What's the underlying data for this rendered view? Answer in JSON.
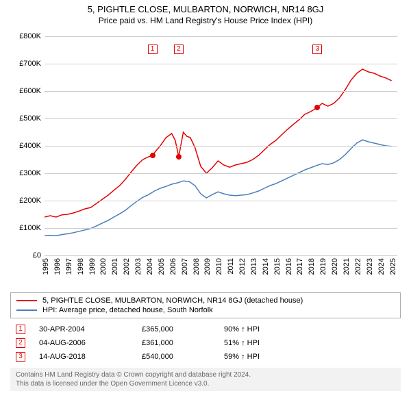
{
  "title_line1": "5, PIGHTLE CLOSE, MULBARTON, NORWICH, NR14 8GJ",
  "title_line2": "Price paid vs. HM Land Registry's House Price Index (HPI)",
  "chart": {
    "type": "line",
    "background_color": "#ffffff",
    "grid_color": "#cccccc",
    "band_color": "#e7edf5",
    "title_fontsize": 13,
    "subtitle_fontsize": 12,
    "tick_fontsize": 11,
    "x_min": 1995,
    "x_max": 2025.5,
    "x_ticks": [
      1995,
      1996,
      1997,
      1998,
      1999,
      2000,
      2001,
      2002,
      2003,
      2004,
      2005,
      2006,
      2007,
      2008,
      2009,
      2010,
      2011,
      2012,
      2013,
      2014,
      2015,
      2016,
      2017,
      2018,
      2019,
      2020,
      2021,
      2022,
      2023,
      2024,
      2025
    ],
    "y_min": 0,
    "y_max": 800000,
    "y_ticks": [
      0,
      100000,
      200000,
      300000,
      400000,
      500000,
      600000,
      700000,
      800000
    ],
    "y_tick_labels": [
      "£0",
      "£100K",
      "£200K",
      "£300K",
      "£400K",
      "£500K",
      "£600K",
      "£700K",
      "£800K"
    ],
    "band_year_width": 1,
    "series": [
      {
        "name": "property",
        "color": "#e60000",
        "line_width": 1.5,
        "data": [
          [
            1995,
            140000
          ],
          [
            1995.5,
            145000
          ],
          [
            1996,
            140000
          ],
          [
            1996.5,
            148000
          ],
          [
            1997,
            150000
          ],
          [
            1997.5,
            155000
          ],
          [
            1998,
            162000
          ],
          [
            1998.5,
            170000
          ],
          [
            1999,
            175000
          ],
          [
            1999.5,
            190000
          ],
          [
            2000,
            205000
          ],
          [
            2000.5,
            220000
          ],
          [
            2001,
            238000
          ],
          [
            2001.5,
            255000
          ],
          [
            2002,
            278000
          ],
          [
            2002.5,
            305000
          ],
          [
            2003,
            330000
          ],
          [
            2003.5,
            350000
          ],
          [
            2004,
            360000
          ],
          [
            2004.33,
            365000
          ],
          [
            2004.6,
            380000
          ],
          [
            2005,
            400000
          ],
          [
            2005.5,
            430000
          ],
          [
            2006,
            445000
          ],
          [
            2006.3,
            420000
          ],
          [
            2006.6,
            361000
          ],
          [
            2007,
            450000
          ],
          [
            2007.3,
            435000
          ],
          [
            2007.6,
            430000
          ],
          [
            2008,
            395000
          ],
          [
            2008.5,
            325000
          ],
          [
            2009,
            300000
          ],
          [
            2009.5,
            320000
          ],
          [
            2010,
            345000
          ],
          [
            2010.5,
            330000
          ],
          [
            2011,
            322000
          ],
          [
            2011.5,
            330000
          ],
          [
            2012,
            335000
          ],
          [
            2012.5,
            340000
          ],
          [
            2013,
            350000
          ],
          [
            2013.5,
            365000
          ],
          [
            2014,
            385000
          ],
          [
            2014.5,
            405000
          ],
          [
            2015,
            420000
          ],
          [
            2015.5,
            440000
          ],
          [
            2016,
            460000
          ],
          [
            2016.5,
            478000
          ],
          [
            2017,
            495000
          ],
          [
            2017.5,
            515000
          ],
          [
            2018,
            525000
          ],
          [
            2018.6,
            540000
          ],
          [
            2019,
            555000
          ],
          [
            2019.5,
            545000
          ],
          [
            2020,
            555000
          ],
          [
            2020.5,
            575000
          ],
          [
            2021,
            605000
          ],
          [
            2021.5,
            640000
          ],
          [
            2022,
            665000
          ],
          [
            2022.5,
            680000
          ],
          [
            2023,
            670000
          ],
          [
            2023.5,
            665000
          ],
          [
            2024,
            655000
          ],
          [
            2024.5,
            648000
          ],
          [
            2025,
            638000
          ]
        ]
      },
      {
        "name": "hpi",
        "color": "#4a7ebb",
        "line_width": 1.2,
        "data": [
          [
            1995,
            72000
          ],
          [
            1995.5,
            73000
          ],
          [
            1996,
            72000
          ],
          [
            1996.5,
            76000
          ],
          [
            1997,
            79000
          ],
          [
            1997.5,
            83000
          ],
          [
            1998,
            88000
          ],
          [
            1998.5,
            93000
          ],
          [
            1999,
            98000
          ],
          [
            1999.5,
            108000
          ],
          [
            2000,
            118000
          ],
          [
            2000.5,
            128000
          ],
          [
            2001,
            140000
          ],
          [
            2001.5,
            152000
          ],
          [
            2002,
            165000
          ],
          [
            2002.5,
            182000
          ],
          [
            2003,
            198000
          ],
          [
            2003.5,
            212000
          ],
          [
            2004,
            222000
          ],
          [
            2004.5,
            235000
          ],
          [
            2005,
            245000
          ],
          [
            2005.5,
            252000
          ],
          [
            2006,
            260000
          ],
          [
            2006.5,
            265000
          ],
          [
            2007,
            272000
          ],
          [
            2007.5,
            270000
          ],
          [
            2008,
            255000
          ],
          [
            2008.5,
            225000
          ],
          [
            2009,
            210000
          ],
          [
            2009.5,
            222000
          ],
          [
            2010,
            232000
          ],
          [
            2010.5,
            225000
          ],
          [
            2011,
            220000
          ],
          [
            2011.5,
            218000
          ],
          [
            2012,
            220000
          ],
          [
            2012.5,
            222000
          ],
          [
            2013,
            228000
          ],
          [
            2013.5,
            235000
          ],
          [
            2014,
            245000
          ],
          [
            2014.5,
            255000
          ],
          [
            2015,
            262000
          ],
          [
            2015.5,
            272000
          ],
          [
            2016,
            282000
          ],
          [
            2016.5,
            292000
          ],
          [
            2017,
            302000
          ],
          [
            2017.5,
            312000
          ],
          [
            2018,
            320000
          ],
          [
            2018.5,
            328000
          ],
          [
            2019,
            335000
          ],
          [
            2019.5,
            332000
          ],
          [
            2020,
            338000
          ],
          [
            2020.5,
            350000
          ],
          [
            2021,
            368000
          ],
          [
            2021.5,
            390000
          ],
          [
            2022,
            410000
          ],
          [
            2022.5,
            422000
          ],
          [
            2023,
            415000
          ],
          [
            2023.5,
            410000
          ],
          [
            2024,
            405000
          ],
          [
            2024.5,
            400000
          ],
          [
            2025,
            398000
          ]
        ]
      }
    ],
    "sale_markers": [
      {
        "n": "1",
        "year": 2004.33,
        "value": 365000,
        "color": "#e60000"
      },
      {
        "n": "2",
        "year": 2006.6,
        "value": 361000,
        "color": "#e60000"
      },
      {
        "n": "3",
        "year": 2018.6,
        "value": 540000,
        "color": "#e60000"
      }
    ]
  },
  "legend": {
    "items": [
      {
        "color": "#e60000",
        "label": "5, PIGHTLE CLOSE, MULBARTON, NORWICH, NR14 8GJ (detached house)"
      },
      {
        "color": "#4a7ebb",
        "label": "HPI: Average price, detached house, South Norfolk"
      }
    ]
  },
  "sales": [
    {
      "n": "1",
      "color": "#e60000",
      "date": "30-APR-2004",
      "price": "£365,000",
      "hpi": "90% ↑ HPI"
    },
    {
      "n": "2",
      "color": "#e60000",
      "date": "04-AUG-2006",
      "price": "£361,000",
      "hpi": "51% ↑ HPI"
    },
    {
      "n": "3",
      "color": "#e60000",
      "date": "14-AUG-2018",
      "price": "£540,000",
      "hpi": "59% ↑ HPI"
    }
  ],
  "credits": {
    "line1": "Contains HM Land Registry data © Crown copyright and database right 2024.",
    "line2": "This data is licensed under the Open Government Licence v3.0."
  }
}
